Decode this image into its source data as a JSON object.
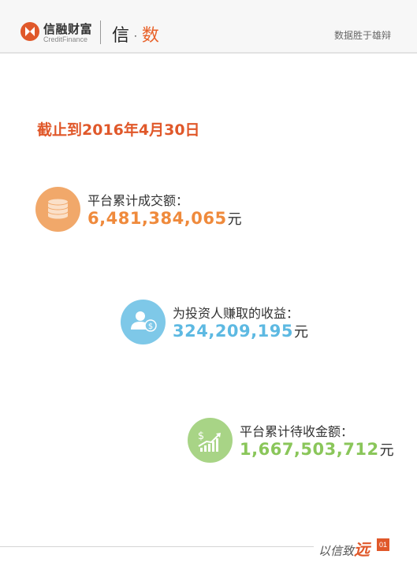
{
  "header": {
    "logo_cn": "信融财富",
    "logo_en": "CreditFinance",
    "brand_left": "信",
    "brand_dot": "·",
    "brand_right": "数",
    "tagline": "数据胜于雄辩"
  },
  "report": {
    "date_title": "截止到2016年4月30日"
  },
  "stats": [
    {
      "label": "平台累计成交额：",
      "value": "6,481,384,065",
      "unit": "元",
      "icon": "coins-stack-icon",
      "color": "#ef8a3c"
    },
    {
      "label": "为投资人赚取的收益：",
      "value": "324,209,195",
      "unit": "元",
      "icon": "investor-dollar-icon",
      "color": "#5db9e2"
    },
    {
      "label": "平台累计待收金额：",
      "value": "1,667,503,712",
      "unit": "元",
      "icon": "growth-chart-icon",
      "color": "#8ac65a"
    }
  ],
  "footer": {
    "slogan_prefix": "以信致",
    "slogan_big": "远",
    "page_number": "01"
  },
  "colors": {
    "accent": "#e0582a",
    "header_bg": "#f7f7f7"
  }
}
